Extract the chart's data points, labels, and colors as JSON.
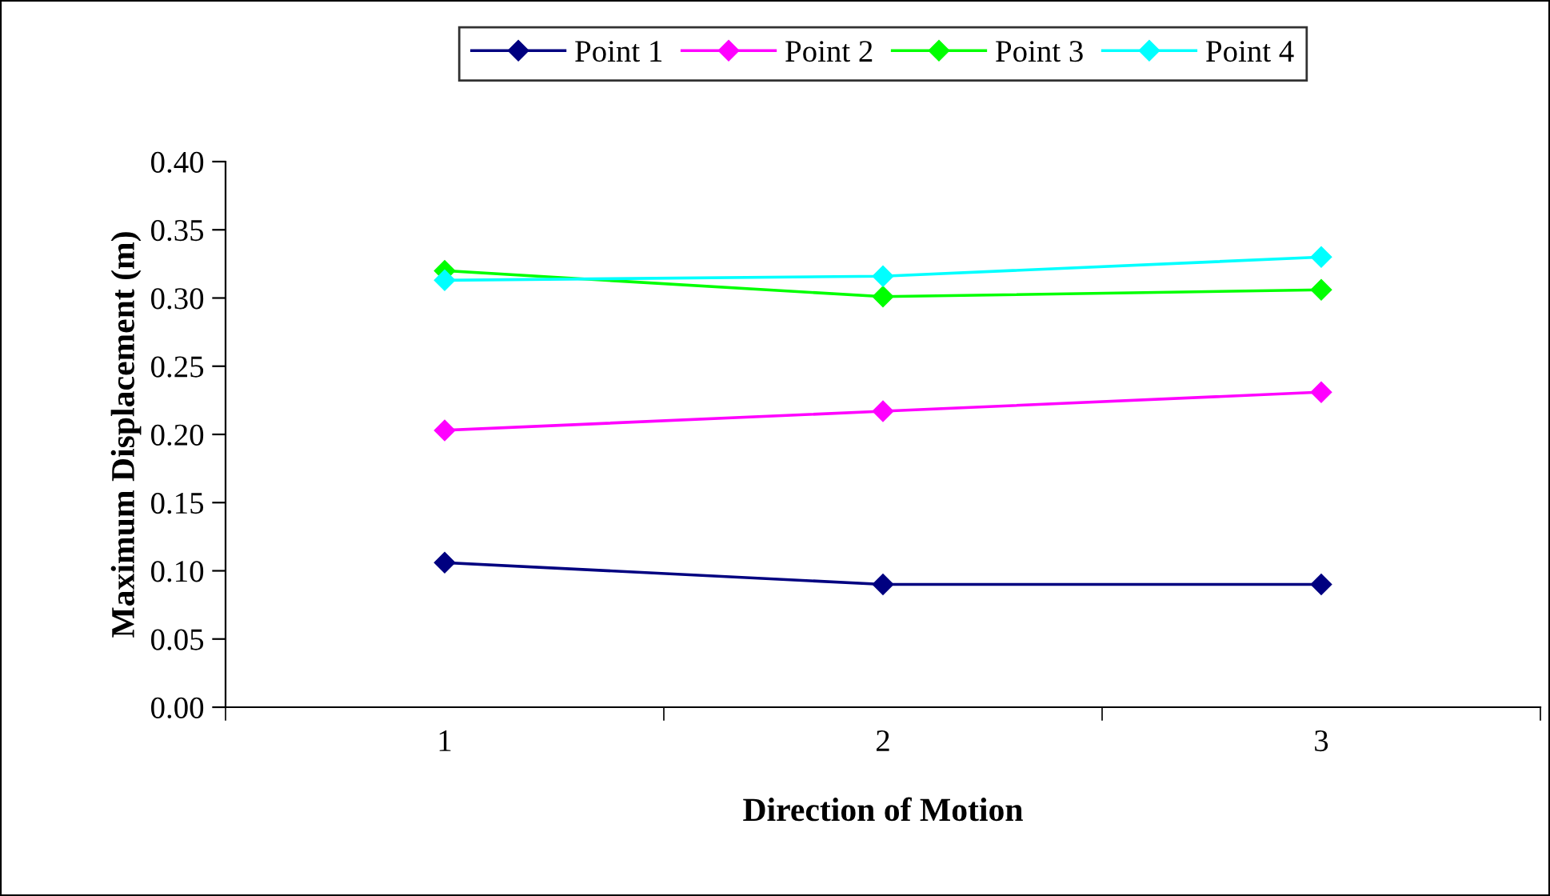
{
  "chart_data": {
    "type": "line",
    "xlabel": "Direction of Motion",
    "ylabel": "Maximum Displacement (m)",
    "categories": [
      "1",
      "2",
      "3"
    ],
    "series": [
      {
        "name": "Point 1",
        "color": "#000080",
        "values": [
          0.106,
          0.09,
          0.09
        ]
      },
      {
        "name": "Point 2",
        "color": "#ff00ff",
        "values": [
          0.203,
          0.217,
          0.231
        ]
      },
      {
        "name": "Point 3",
        "color": "#00ff00",
        "values": [
          0.32,
          0.301,
          0.306
        ]
      },
      {
        "name": "Point 4",
        "color": "#00ffff",
        "values": [
          0.313,
          0.316,
          0.33
        ]
      }
    ],
    "ylim": [
      0,
      0.4
    ],
    "yticks": [
      {
        "value": 0,
        "label": "0.00"
      },
      {
        "value": 0.05,
        "label": "0.05"
      },
      {
        "value": 0.1,
        "label": "0.10"
      },
      {
        "value": 0.15,
        "label": "0.15"
      },
      {
        "value": 0.2,
        "label": "0.20"
      },
      {
        "value": 0.25,
        "label": "0.25"
      },
      {
        "value": 0.3,
        "label": "0.30"
      },
      {
        "value": 0.35,
        "label": "0.35"
      },
      {
        "value": 0.4,
        "label": "0.40"
      }
    ],
    "marker": "diamond",
    "line_style": "solid",
    "legend": "top",
    "grid": false
  }
}
